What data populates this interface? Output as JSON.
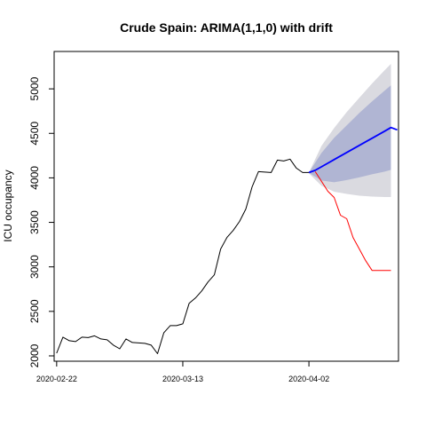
{
  "chart_data": {
    "type": "line",
    "title": "Crude Spain: ARIMA(1,1,0) with drift",
    "xlabel": "",
    "ylabel": "ICU occupancy",
    "x_ticks": [
      "2020-02-22",
      "2020-03-13",
      "2020-04-02"
    ],
    "y_ticks": [
      2000,
      2500,
      3000,
      3500,
      4000,
      4500,
      5000
    ],
    "xlim": [
      -0.4,
      54.2
    ],
    "ylim": [
      1940,
      5420
    ],
    "start_date": "2020-02-22",
    "series": [
      {
        "name": "",
        "role": "observed",
        "color": "#000000",
        "x": [
          0,
          1,
          2,
          3,
          4,
          5,
          6,
          7,
          8,
          9,
          10,
          11,
          12,
          13,
          14,
          15,
          16,
          17,
          18,
          19,
          20,
          21,
          22,
          23,
          24,
          25,
          26,
          27,
          28,
          29,
          30,
          31,
          32,
          33,
          34,
          35,
          36,
          37,
          38,
          39,
          40
        ],
        "values": [
          2030,
          2210,
          2170,
          2160,
          2210,
          2205,
          2225,
          2190,
          2180,
          2120,
          2080,
          2190,
          2150,
          2145,
          2140,
          2120,
          2025,
          2260,
          2340,
          2340,
          2360,
          2590,
          2650,
          2730,
          2830,
          2910,
          3200,
          3330,
          3410,
          3510,
          3650,
          3900,
          4070,
          4065,
          4060,
          4200,
          4190,
          4210,
          4110,
          4060,
          4060
        ]
      },
      {
        "name": "",
        "role": "forecast",
        "color": "#0000ff",
        "x": [
          40,
          41,
          42,
          43,
          44,
          45,
          46,
          47,
          48,
          49,
          50,
          51,
          52,
          53,
          54
        ],
        "values": [
          4060,
          4085,
          4125,
          4165,
          4205,
          4245,
          4285,
          4325,
          4365,
          4405,
          4445,
          4485,
          4525,
          4565,
          4540
        ]
      },
      {
        "name": "",
        "role": "actual",
        "color": "#ff0000",
        "x": [
          41,
          42,
          43,
          44,
          45,
          46,
          47,
          48,
          49,
          50,
          51,
          52,
          53
        ],
        "values": [
          4070,
          3960,
          3850,
          3780,
          3580,
          3540,
          3330,
          3200,
          3070,
          2960,
          2960,
          2960,
          2960
        ]
      }
    ],
    "intervals": [
      {
        "level": "95",
        "color": "#dadae0",
        "x": [
          40,
          42,
          44,
          46,
          48,
          50,
          52,
          53
        ],
        "lower": [
          4050,
          3910,
          3845,
          3820,
          3800,
          3790,
          3785,
          3785
        ],
        "upper": [
          4060,
          4360,
          4560,
          4740,
          4900,
          5060,
          5210,
          5280
        ]
      },
      {
        "level": "80",
        "color": "#b0b5d3",
        "x": [
          40,
          42,
          44,
          46,
          48,
          50,
          52,
          53
        ],
        "lower": [
          4055,
          3970,
          3950,
          3975,
          4005,
          4040,
          4070,
          4090
        ],
        "upper": [
          4060,
          4280,
          4450,
          4590,
          4730,
          4860,
          4980,
          5040
        ]
      }
    ],
    "grid": false,
    "legend": "none"
  }
}
